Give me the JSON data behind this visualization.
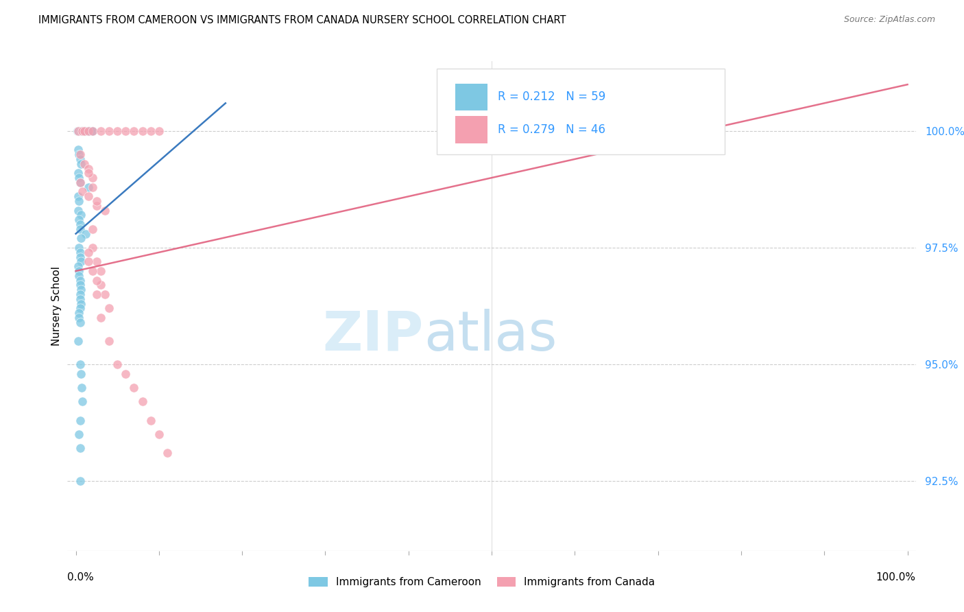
{
  "title": "IMMIGRANTS FROM CAMEROON VS IMMIGRANTS FROM CANADA NURSERY SCHOOL CORRELATION CHART",
  "source": "Source: ZipAtlas.com",
  "ylabel": "Nursery School",
  "y_ticks": [
    92.5,
    95.0,
    97.5,
    100.0
  ],
  "x_range": [
    -1.0,
    101.0
  ],
  "y_range": [
    91.0,
    101.5
  ],
  "legend_cameroon": "Immigrants from Cameroon",
  "legend_canada": "Immigrants from Canada",
  "R_cameroon": 0.212,
  "N_cameroon": 59,
  "R_canada": 0.279,
  "N_canada": 46,
  "color_cameroon": "#7ec8e3",
  "color_canada": "#f4a0b0",
  "color_cameroon_line": "#3a7abf",
  "color_canada_line": "#e05878",
  "color_text_blue": "#3399ff",
  "cam_x": [
    0.2,
    0.3,
    0.4,
    0.5,
    0.6,
    0.7,
    0.8,
    0.9,
    1.0,
    1.1,
    1.2,
    1.4,
    1.5,
    1.6,
    1.8,
    2.0,
    0.3,
    0.4,
    0.5,
    0.6,
    0.3,
    0.4,
    0.5,
    1.5,
    0.3,
    0.4,
    0.3,
    0.6,
    0.4,
    0.5,
    0.5,
    1.2,
    0.6,
    0.4,
    0.5,
    0.5,
    0.6,
    0.3,
    0.4,
    0.4,
    0.5,
    0.5,
    0.6,
    0.5,
    0.5,
    0.6,
    0.5,
    0.4,
    0.4,
    0.5,
    0.3,
    0.5,
    0.6,
    0.7,
    0.8,
    0.5,
    0.4,
    0.5,
    0.5
  ],
  "cam_y": [
    100.0,
    100.0,
    100.0,
    100.0,
    100.0,
    100.0,
    100.0,
    100.0,
    100.0,
    100.0,
    100.0,
    100.0,
    100.0,
    100.0,
    100.0,
    100.0,
    99.6,
    99.5,
    99.4,
    99.3,
    99.1,
    99.0,
    98.9,
    98.8,
    98.6,
    98.5,
    98.3,
    98.2,
    98.1,
    98.0,
    97.9,
    97.8,
    97.7,
    97.5,
    97.4,
    97.3,
    97.2,
    97.1,
    97.0,
    96.9,
    96.8,
    96.7,
    96.6,
    96.5,
    96.4,
    96.3,
    96.2,
    96.1,
    96.0,
    95.9,
    95.5,
    95.0,
    94.8,
    94.5,
    94.2,
    93.8,
    93.5,
    93.2,
    92.5
  ],
  "can_x": [
    0.3,
    0.8,
    1.0,
    1.5,
    2.0,
    3.0,
    4.0,
    5.0,
    6.0,
    7.0,
    8.0,
    9.0,
    10.0,
    0.5,
    1.0,
    1.5,
    2.0,
    0.5,
    0.8,
    1.5,
    2.5,
    1.5,
    2.0,
    2.5,
    2.0,
    3.5,
    2.0,
    2.5,
    3.0,
    3.0,
    3.5,
    4.0,
    1.5,
    2.5,
    2.5,
    3.0,
    4.0,
    5.0,
    6.0,
    7.0,
    8.0,
    9.0,
    10.0,
    11.0,
    1.5,
    2.0
  ],
  "can_y": [
    100.0,
    100.0,
    100.0,
    100.0,
    100.0,
    100.0,
    100.0,
    100.0,
    100.0,
    100.0,
    100.0,
    100.0,
    100.0,
    99.5,
    99.3,
    99.2,
    99.0,
    98.9,
    98.7,
    98.6,
    98.4,
    99.1,
    98.8,
    98.5,
    97.9,
    98.3,
    97.5,
    97.2,
    97.0,
    96.7,
    96.5,
    96.2,
    97.2,
    96.8,
    96.5,
    96.0,
    95.5,
    95.0,
    94.8,
    94.5,
    94.2,
    93.8,
    93.5,
    93.1,
    97.4,
    97.0
  ],
  "cam_trend_x": [
    0.0,
    18.0
  ],
  "cam_trend_y": [
    97.8,
    100.6
  ],
  "can_trend_x": [
    0.0,
    100.0
  ],
  "can_trend_y": [
    97.0,
    101.0
  ]
}
